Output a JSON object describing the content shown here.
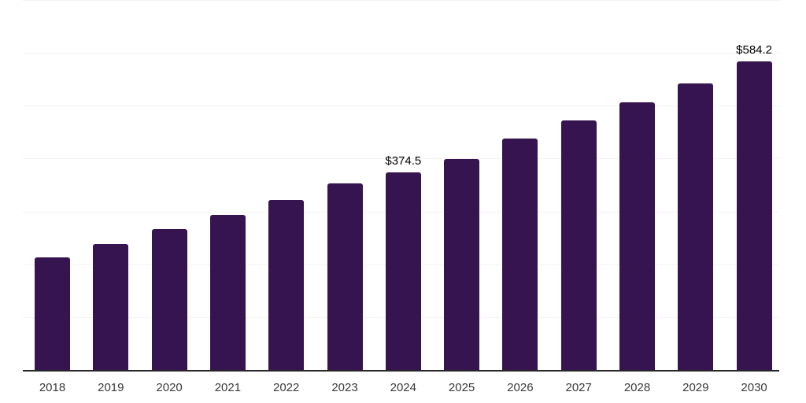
{
  "chart_data": {
    "type": "bar",
    "categories": [
      "2018",
      "2019",
      "2020",
      "2021",
      "2022",
      "2023",
      "2024",
      "2025",
      "2026",
      "2027",
      "2028",
      "2029",
      "2030"
    ],
    "values": [
      214,
      239,
      267,
      294,
      322,
      353,
      374.5,
      400,
      439,
      472,
      507,
      543,
      584.2
    ],
    "bar_labels": [
      "",
      "",
      "",
      "",
      "",
      "",
      "$374.5",
      "",
      "",
      "",
      "",
      "",
      "$584.2"
    ],
    "xlabel": "",
    "ylabel": "",
    "ylim": [
      0,
      700
    ],
    "gridline_step": 100,
    "grid": "horizontal-only",
    "y_tick_labels_visible": false,
    "legend": "none"
  },
  "colors": {
    "bar": "#361450",
    "grid": "#f2f2f2",
    "axis": "#262626",
    "tick_text": "#3a3a3a",
    "value_text": "#000000",
    "background": "#ffffff"
  }
}
